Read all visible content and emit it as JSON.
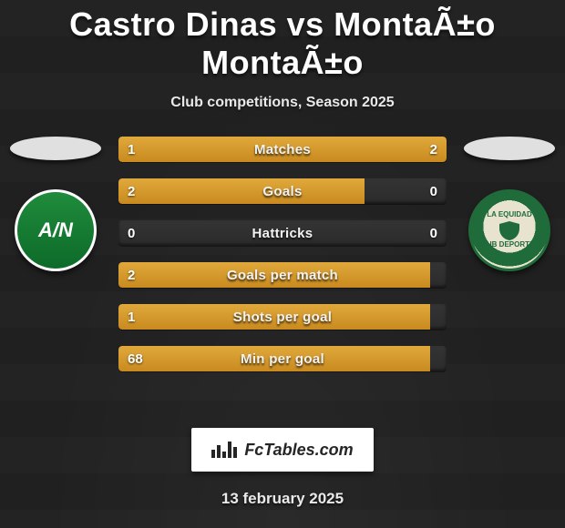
{
  "title": "Castro Dinas vs MontaÃ±o MontaÃ±o",
  "subtitle": "Club competitions, Season 2025",
  "date": "13 february 2025",
  "badge_text": "FcTables.com",
  "colors": {
    "page_bg": "#202020",
    "bar_track": "#2e2e2e",
    "bar_fill": "#d7982b",
    "text": "#ffffff"
  },
  "left_crest": {
    "initials": "A/N",
    "bg": "#1f8b3c",
    "text": "#ffffff"
  },
  "right_crest": {
    "top_text": "LA EQUIDAD",
    "bottom_text": "CLUB DEPORTIVO"
  },
  "metrics": [
    {
      "label": "Matches",
      "left_value": "1",
      "right_value": "2",
      "left_pct": 33,
      "right_pct": 67
    },
    {
      "label": "Goals",
      "left_value": "2",
      "right_value": "0",
      "left_pct": 75,
      "right_pct": 0
    },
    {
      "label": "Hattricks",
      "left_value": "0",
      "right_value": "0",
      "left_pct": 0,
      "right_pct": 0
    },
    {
      "label": "Goals per match",
      "left_value": "2",
      "right_value": "",
      "left_pct": 95,
      "right_pct": 0
    },
    {
      "label": "Shots per goal",
      "left_value": "1",
      "right_value": "",
      "left_pct": 95,
      "right_pct": 0
    },
    {
      "label": "Min per goal",
      "left_value": "68",
      "right_value": "",
      "left_pct": 95,
      "right_pct": 0
    }
  ]
}
